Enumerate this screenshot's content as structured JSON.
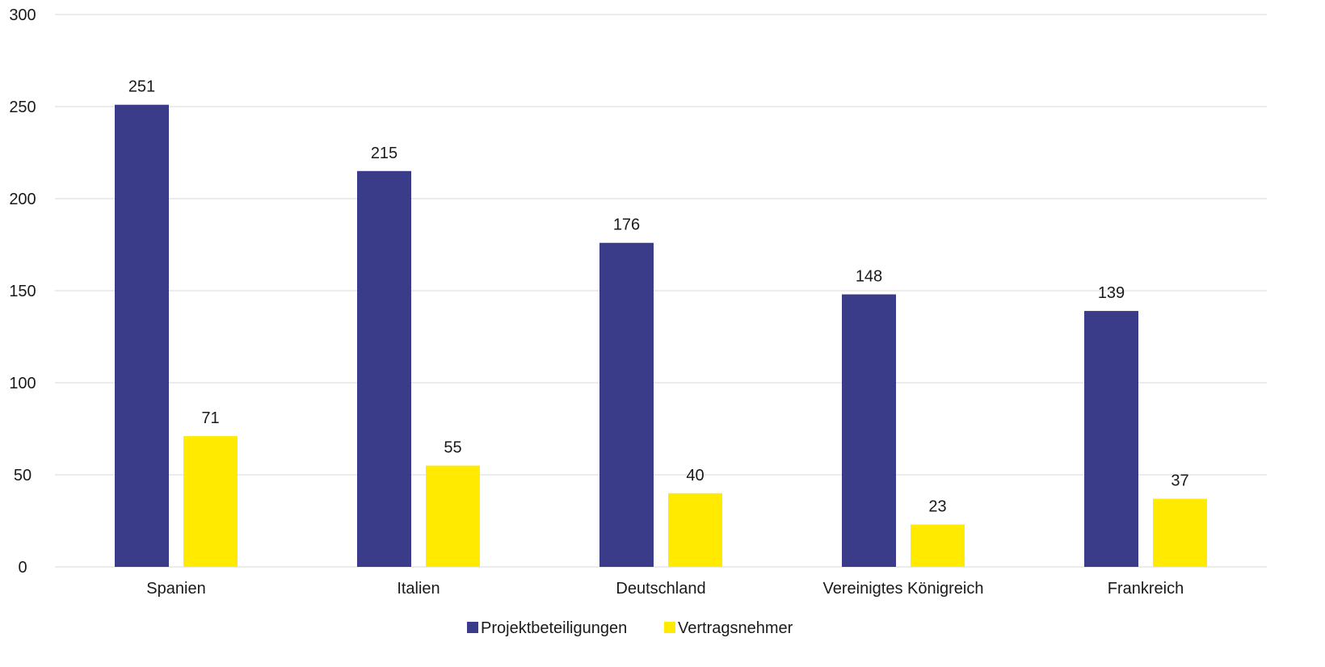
{
  "chart_data": {
    "type": "bar",
    "categories": [
      "Spanien",
      "Italien",
      "Deutschland",
      "Vereinigtes Königreich",
      "Frankreich"
    ],
    "series": [
      {
        "name": "Projektbeteiligungen",
        "color": "#3a3c8a",
        "values": [
          251,
          215,
          176,
          148,
          139
        ]
      },
      {
        "name": "Vertragsnehmer",
        "color": "#ffea00",
        "values": [
          71,
          55,
          40,
          23,
          37
        ]
      }
    ],
    "ylim": [
      0,
      300
    ],
    "yticks": [
      0,
      50,
      100,
      150,
      200,
      250,
      300
    ],
    "grid": true,
    "legend_position": "bottom",
    "data_labels": true
  }
}
